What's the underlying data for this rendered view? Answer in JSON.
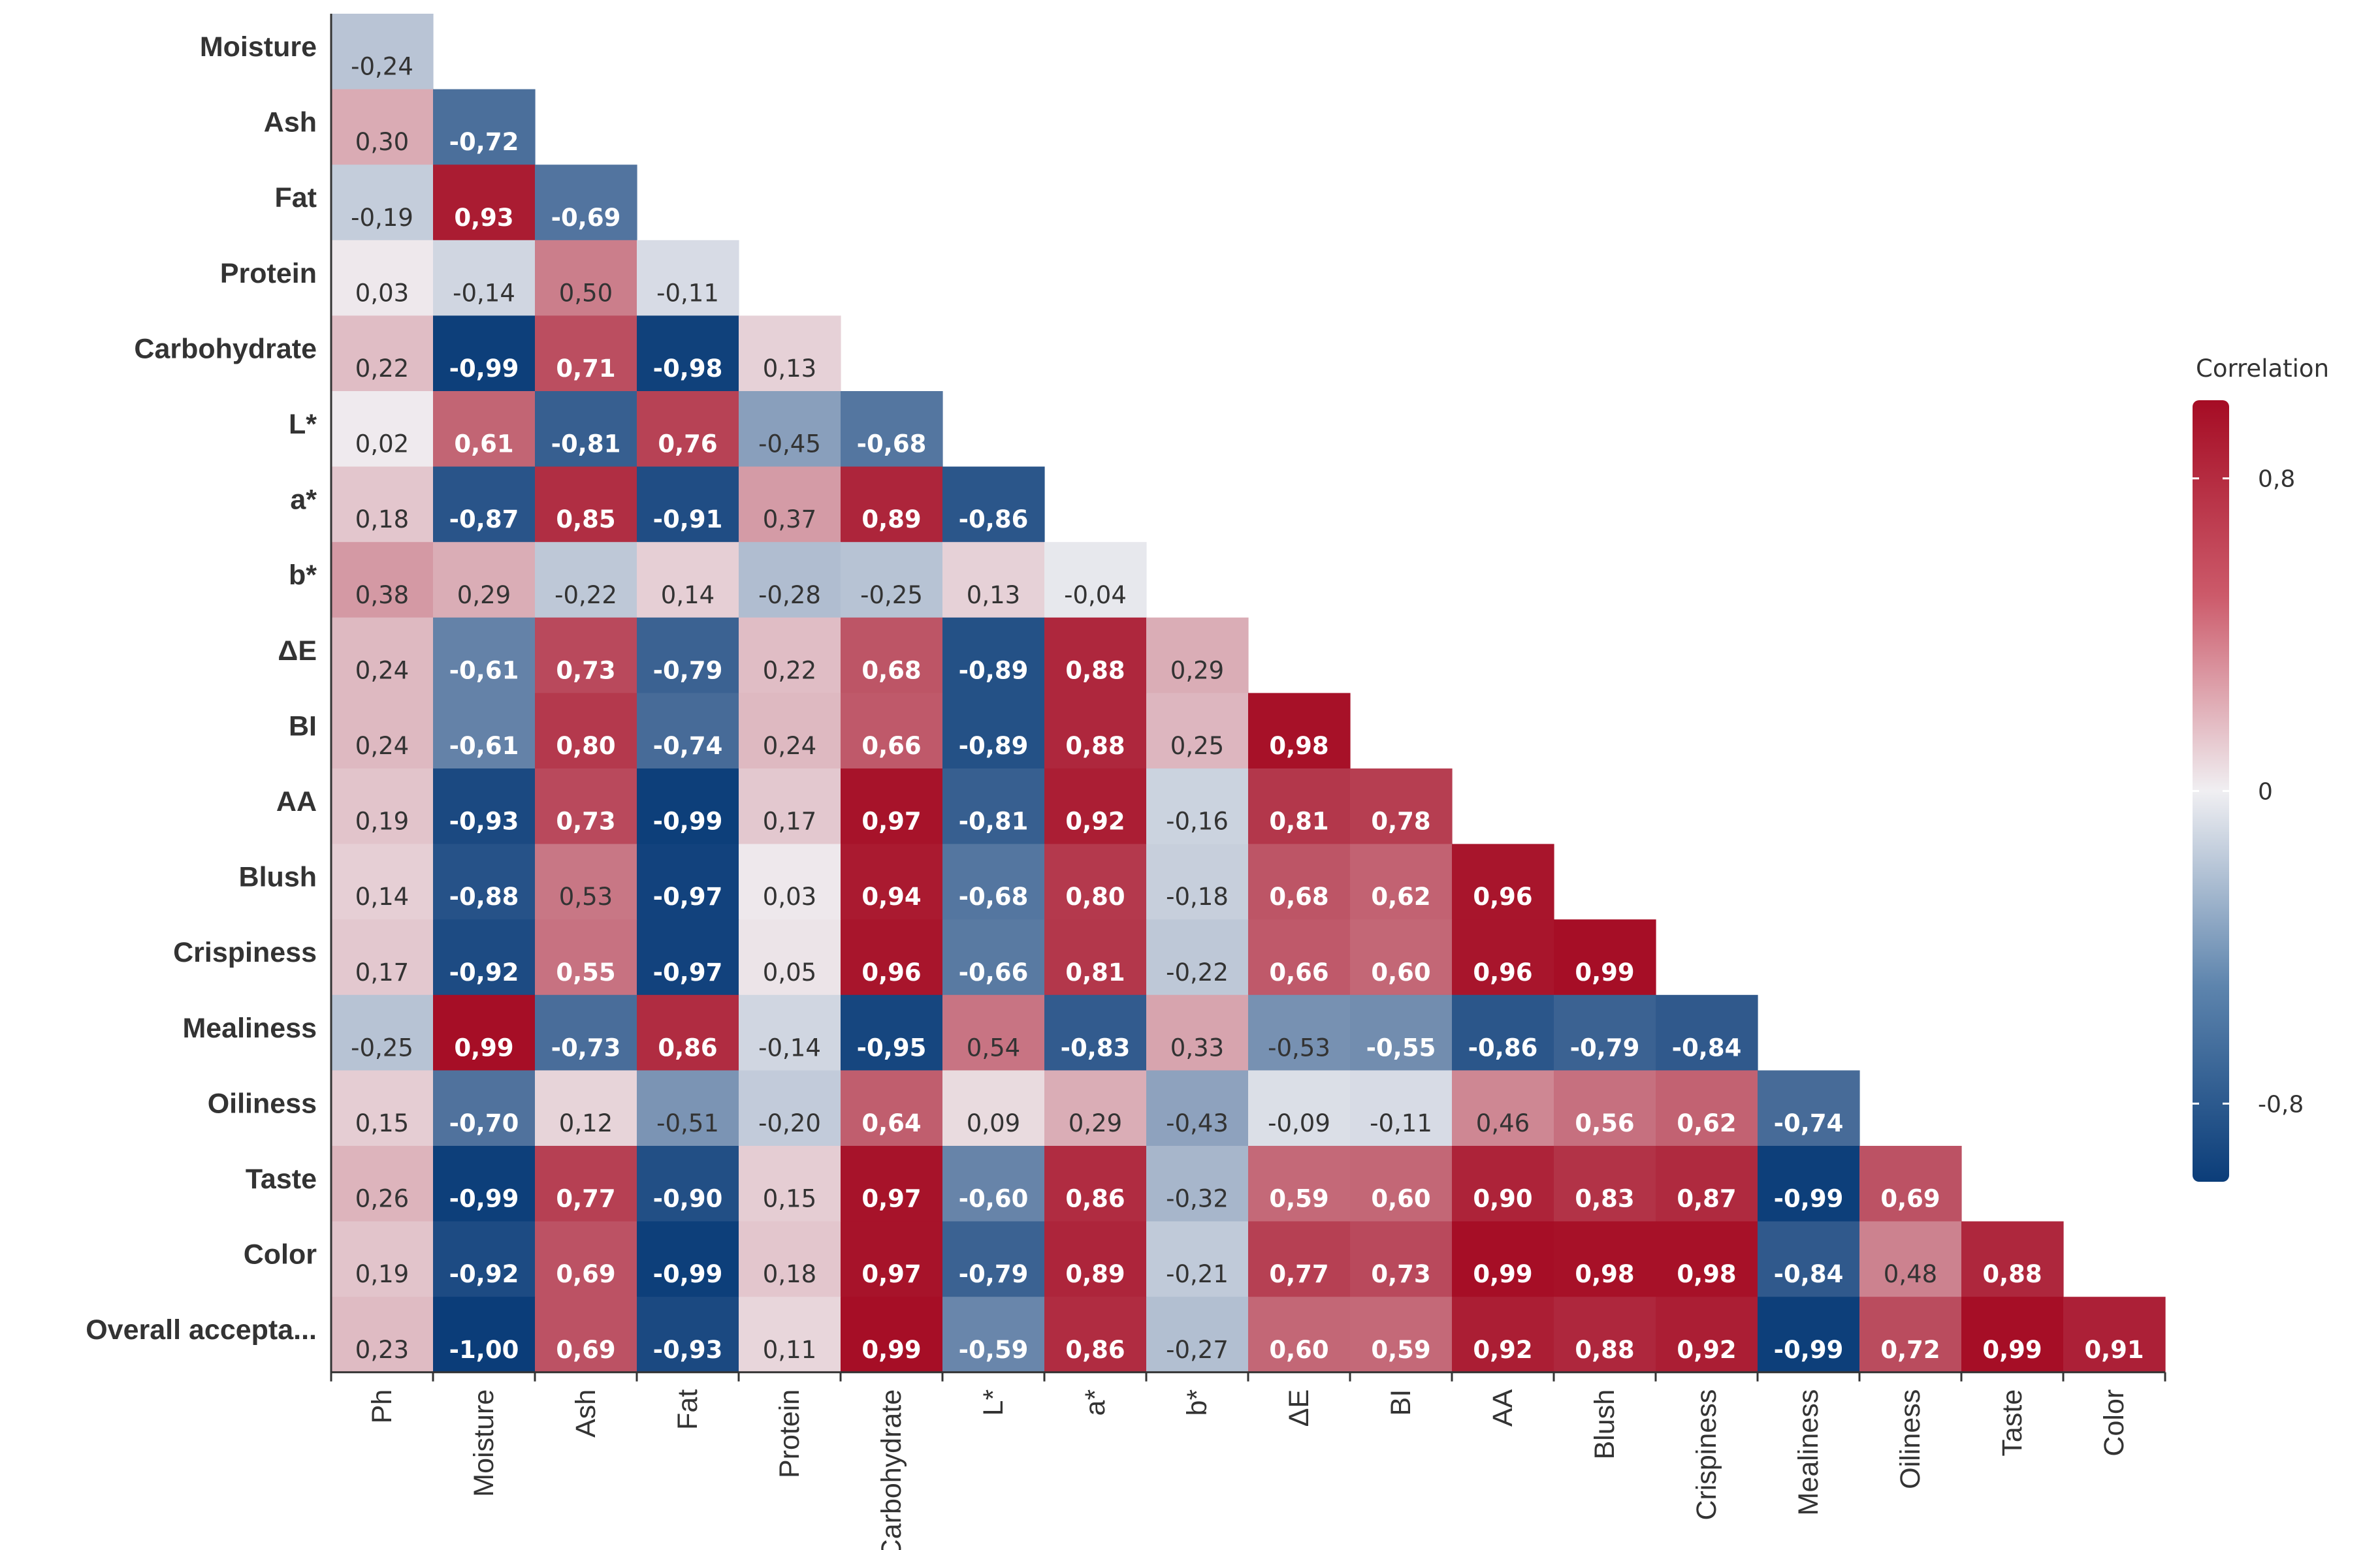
{
  "chart_data": {
    "type": "heatmap",
    "title": "",
    "xlabel": "",
    "ylabel": "",
    "x_categories": [
      "Ph",
      "Moisture",
      "Ash",
      "Fat",
      "Protein",
      "Carbohydrate",
      "L*",
      "a*",
      "b*",
      "ΔE",
      "BI",
      "AA",
      "Blush",
      "Crispiness",
      "Mealiness",
      "Oiliness",
      "Taste",
      "Color"
    ],
    "y_categories": [
      "Moisture",
      "Ash",
      "Fat",
      "Protein",
      "Carbohydrate",
      "L*",
      "a*",
      "b*",
      "ΔE",
      "BI",
      "AA",
      "Blush",
      "Crispiness",
      "Mealiness",
      "Oiliness",
      "Taste",
      "Color",
      "Overall accepta..."
    ],
    "values": [
      [
        "-0,24"
      ],
      [
        "0,30",
        "-0,72"
      ],
      [
        "-0,19",
        "0,93",
        "-0,69"
      ],
      [
        "0,03",
        "-0,14",
        "0,50",
        "-0,11"
      ],
      [
        "0,22",
        "-0,99",
        "0,71",
        "-0,98",
        "0,13"
      ],
      [
        "0,02",
        "0,61",
        "-0,81",
        "0,76",
        "-0,45",
        "-0,68"
      ],
      [
        "0,18",
        "-0,87",
        "0,85",
        "-0,91",
        "0,37",
        "0,89",
        "-0,86"
      ],
      [
        "0,38",
        "0,29",
        "-0,22",
        "0,14",
        "-0,28",
        "-0,25",
        "0,13",
        "-0,04"
      ],
      [
        "0,24",
        "-0,61",
        "0,73",
        "-0,79",
        "0,22",
        "0,68",
        "-0,89",
        "0,88",
        "0,29"
      ],
      [
        "0,24",
        "-0,61",
        "0,80",
        "-0,74",
        "0,24",
        "0,66",
        "-0,89",
        "0,88",
        "0,25",
        "0,98"
      ],
      [
        "0,19",
        "-0,93",
        "0,73",
        "-0,99",
        "0,17",
        "0,97",
        "-0,81",
        "0,92",
        "-0,16",
        "0,81",
        "0,78"
      ],
      [
        "0,14",
        "-0,88",
        "0,53",
        "-0,97",
        "0,03",
        "0,94",
        "-0,68",
        "0,80",
        "-0,18",
        "0,68",
        "0,62",
        "0,96"
      ],
      [
        "0,17",
        "-0,92",
        "0,55",
        "-0,97",
        "0,05",
        "0,96",
        "-0,66",
        "0,81",
        "-0,22",
        "0,66",
        "0,60",
        "0,96",
        "0,99"
      ],
      [
        "-0,25",
        "0,99",
        "-0,73",
        "0,86",
        "-0,14",
        "-0,95",
        "0,54",
        "-0,83",
        "0,33",
        "-0,53",
        "-0,55",
        "-0,86",
        "-0,79",
        "-0,84"
      ],
      [
        "0,15",
        "-0,70",
        "0,12",
        "-0,51",
        "-0,20",
        "0,64",
        "0,09",
        "0,29",
        "-0,43",
        "-0,09",
        "-0,11",
        "0,46",
        "0,56",
        "0,62",
        "-0,74"
      ],
      [
        "0,26",
        "-0,99",
        "0,77",
        "-0,90",
        "0,15",
        "0,97",
        "-0,60",
        "0,86",
        "-0,32",
        "0,59",
        "0,60",
        "0,90",
        "0,83",
        "0,87",
        "-0,99",
        "0,69"
      ],
      [
        "0,19",
        "-0,92",
        "0,69",
        "-0,99",
        "0,18",
        "0,97",
        "-0,79",
        "0,89",
        "-0,21",
        "0,77",
        "0,73",
        "0,99",
        "0,98",
        "0,98",
        "-0,84",
        "0,48",
        "0,88"
      ],
      [
        "0,23",
        "-1,00",
        "0,69",
        "-0,93",
        "0,11",
        "0,99",
        "-0,59",
        "0,86",
        "-0,27",
        "0,60",
        "0,59",
        "0,92",
        "0,88",
        "0,92",
        "-0,99",
        "0,72",
        "0,99",
        "0,91"
      ]
    ],
    "legend": {
      "title": "Correlation",
      "ticks": [
        {
          "label": "0,8",
          "value": 0.8
        },
        {
          "label": "0",
          "value": 0
        },
        {
          "label": "-0,8",
          "value": -0.8
        }
      ],
      "range": [
        -1,
        1
      ],
      "placement": "right"
    },
    "colors": {
      "negative": "#0b3d79",
      "neutral": "#f0eff2",
      "positive": "#a50c24"
    }
  }
}
